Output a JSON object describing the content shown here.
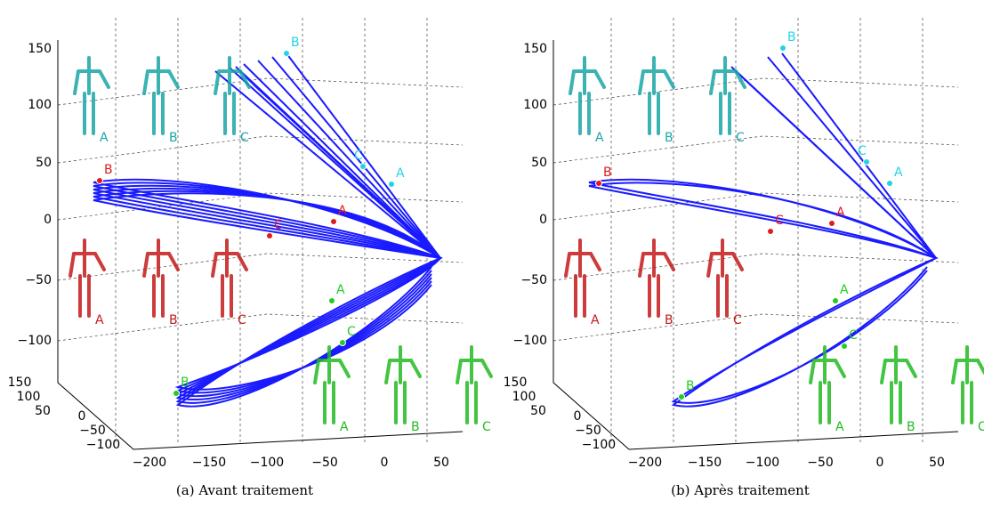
{
  "panels": [
    {
      "caption": "(a) Avant traitement",
      "z_ticks": [
        "150",
        "100",
        "50",
        "0",
        "−50",
        "−100"
      ],
      "x_ticks": [
        "−200",
        "−150",
        "−100",
        "−50",
        "0",
        "50"
      ],
      "y_ticks": [
        "150",
        "100",
        "50",
        "0",
        "−50",
        "−100"
      ],
      "cyan_points": [
        "B",
        "C",
        "A"
      ],
      "red_points": [
        "B",
        "A",
        "C"
      ],
      "green_points": [
        "A",
        "C",
        "B"
      ],
      "cyan_figures": [
        "A",
        "B",
        "C"
      ],
      "red_figures": [
        "A",
        "B",
        "C"
      ],
      "green_figures": [
        "A",
        "B",
        "C"
      ]
    },
    {
      "caption": "(b) Après traitement",
      "z_ticks": [
        "150",
        "100",
        "50",
        "0",
        "−50",
        "−100"
      ],
      "x_ticks": [
        "−200",
        "−150",
        "−100",
        "−50",
        "0",
        "50"
      ],
      "y_ticks": [
        "150",
        "100",
        "50",
        "0",
        "−50",
        "−100"
      ],
      "cyan_points": [
        "B",
        "C",
        "A"
      ],
      "red_points": [
        "B",
        "A",
        "C"
      ],
      "green_points": [
        "A",
        "C",
        "B"
      ],
      "cyan_figures": [
        "A",
        "B",
        "C"
      ],
      "red_figures": [
        "A",
        "B",
        "C"
      ],
      "green_figures": [
        "A",
        "B",
        "C"
      ]
    }
  ]
}
